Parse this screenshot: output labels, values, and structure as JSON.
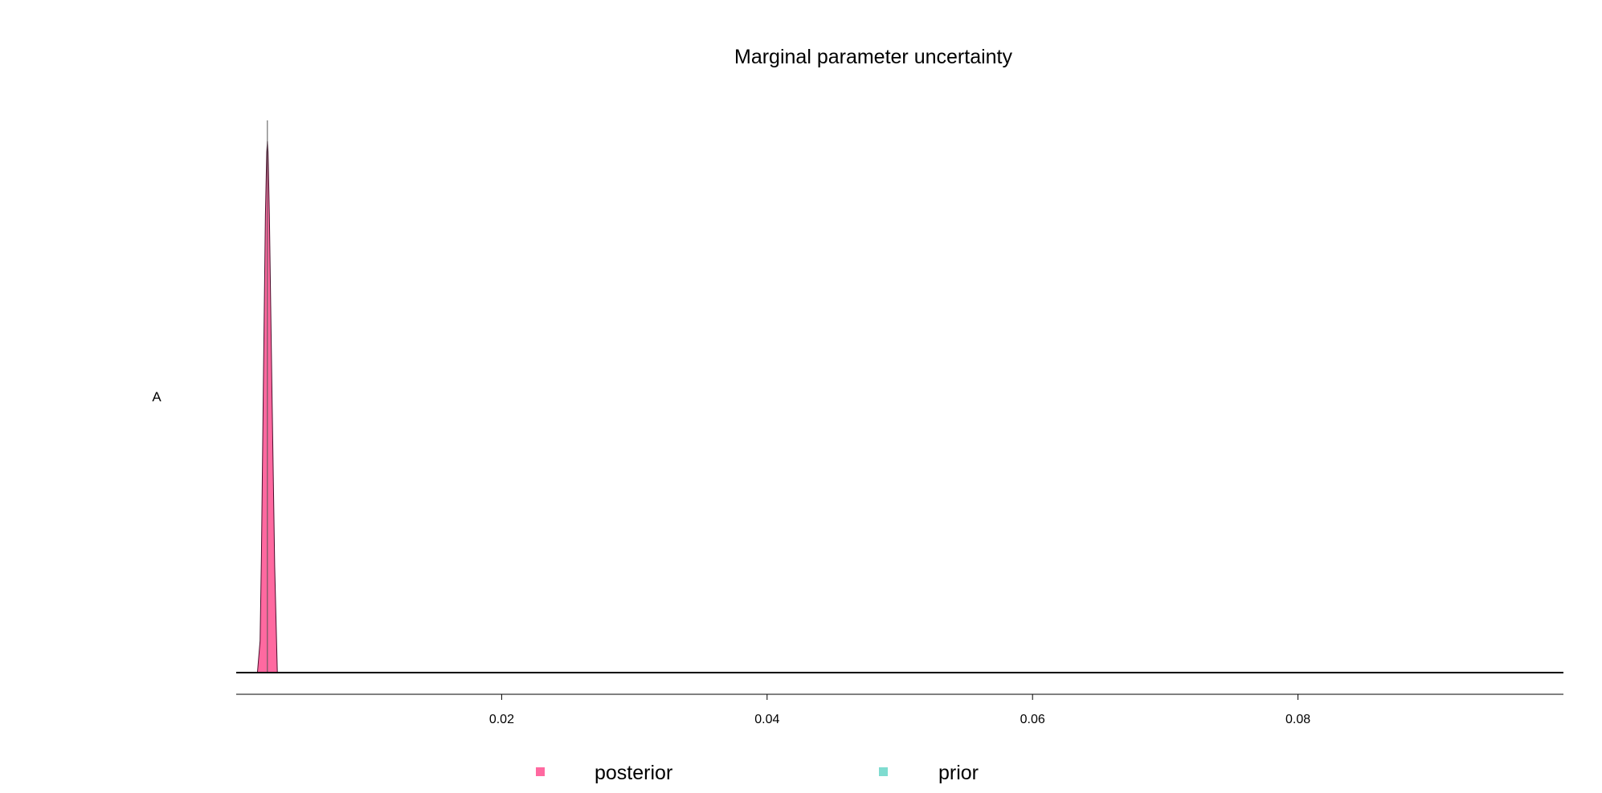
{
  "chart_data": {
    "type": "area",
    "title": "Marginal parameter uncertainty",
    "xlabel": "",
    "ylabel": "",
    "xlim": [
      0.0,
      0.1
    ],
    "grid": false,
    "legend_placement": "bottom",
    "x_ticks": [
      0.02,
      0.04,
      0.06,
      0.08
    ],
    "x_tick_labels": [
      "0.02",
      "0.04",
      "0.06",
      "0.08"
    ],
    "parameters": [
      "A"
    ],
    "series": [
      {
        "name": "posterior",
        "color": "#ff69a0",
        "parameter": "A",
        "peak": 0.00235,
        "x": [
          0.0016,
          0.0018,
          0.0019,
          0.00205,
          0.0022,
          0.0023,
          0.00235,
          0.0024,
          0.0025,
          0.0027,
          0.0029,
          0.0031,
          0.0029
        ],
        "density": [
          0.0,
          0.06,
          0.22,
          0.55,
          0.86,
          0.98,
          1.0,
          0.98,
          0.86,
          0.52,
          0.2,
          0.0,
          0.0
        ]
      },
      {
        "name": "prior",
        "color": "#7fdcd0",
        "parameter": "A",
        "x": [
          0.0,
          0.1
        ],
        "density": [
          0.0,
          0.0
        ]
      }
    ]
  }
}
